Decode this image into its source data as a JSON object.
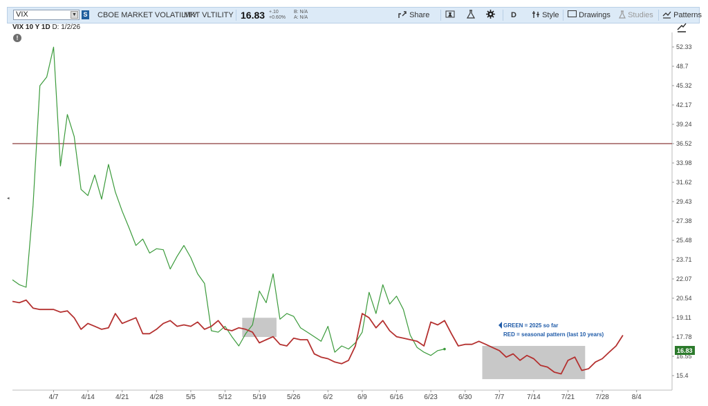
{
  "toolbar": {
    "symbol": "VIX",
    "symbol_dropdown": "▼",
    "symbol_badge": "S",
    "description": "CBOE MARKET VOLATILITY",
    "short_name": "MKT VLTILITY",
    "last_price": "16.83",
    "change": "+.10",
    "change_pct": "+0.60%",
    "bid": "B: N/A",
    "ask": "A: N/A",
    "share_label": "Share",
    "aggregation": "D",
    "style_label": "Style",
    "drawings_label": "Drawings",
    "studies_label": "Studies",
    "patterns_label": "Patterns",
    "icons": [
      "share-icon",
      "flask-icon",
      "beaker-icon",
      "gear-icon",
      "style-icon",
      "drawings-icon",
      "studies-icon",
      "patterns-icon"
    ]
  },
  "chart_header": {
    "symbol_period": "VIX 10 Y 1D",
    "date": "D: 1/2/26",
    "alert": "!"
  },
  "annotations": {
    "green": "GREEN = 2025 so far",
    "red": "RED = seasonal pattern (last 10 years)"
  },
  "last_label": "16.83",
  "colors": {
    "green": "#3a9a3a",
    "red": "#b4302f",
    "hline": "#8b3a3a",
    "accent": "#1f5ba8",
    "shade": "#c8c8c8"
  },
  "chart_data": {
    "type": "line",
    "y_ticks": [
      52.33,
      48.7,
      45.32,
      42.17,
      39.24,
      36.52,
      33.98,
      31.62,
      29.43,
      27.38,
      25.48,
      23.71,
      22.07,
      20.54,
      19.11,
      17.78,
      16.55,
      15.4
    ],
    "y_scale": "log",
    "x_ticks": [
      "4/7",
      "4/14",
      "4/21",
      "4/28",
      "5/5",
      "5/12",
      "5/19",
      "5/26",
      "6/2",
      "6/9",
      "6/16",
      "6/23",
      "6/30",
      "7/7",
      "7/14",
      "7/21",
      "7/28",
      "8/4"
    ],
    "x_tick_index": [
      6,
      11,
      16,
      21,
      26,
      31,
      36,
      41,
      46,
      51,
      56,
      61,
      66,
      71,
      76,
      81,
      86,
      91
    ],
    "horizontal_line": 36.52,
    "shaded_zones": [
      {
        "from": 33.5,
        "to": 38.5,
        "ymin": 17.78,
        "ymax": 19.1
      },
      {
        "from": 68.5,
        "to": 83.5,
        "ymin": 15.2,
        "ymax": 17.2
      }
    ],
    "series": [
      {
        "color": "#3a9a3a",
        "values": [
          22.0,
          21.6,
          21.4,
          29.0,
          45.3,
          46.8,
          52.3,
          33.6,
          40.7,
          37.5,
          30.8,
          30.1,
          32.5,
          29.7,
          33.8,
          30.5,
          28.4,
          26.7,
          25.0,
          25.6,
          24.3,
          24.7,
          24.6,
          22.9,
          24.0,
          25.0,
          23.9,
          22.5,
          21.7,
          18.2,
          18.1,
          18.5,
          17.8,
          17.2,
          18.0,
          18.6,
          21.1,
          20.2,
          22.5,
          19.0,
          19.4,
          19.2,
          18.4,
          18.1,
          17.8,
          17.5,
          18.5,
          16.8,
          17.2,
          17.0,
          17.4,
          18.1,
          21.0,
          19.4,
          21.6,
          20.1,
          20.7,
          19.7,
          17.9,
          17.1,
          16.8,
          16.6,
          16.9,
          17.0
        ]
      },
      {
        "color": "#b4302f",
        "values": [
          20.3,
          20.2,
          20.4,
          19.8,
          19.7,
          19.7,
          19.7,
          19.5,
          19.6,
          19.1,
          18.3,
          18.7,
          18.5,
          18.3,
          18.4,
          19.4,
          18.7,
          18.9,
          19.1,
          18.0,
          18.0,
          18.3,
          18.7,
          18.9,
          18.5,
          18.6,
          18.5,
          18.8,
          18.3,
          18.5,
          18.9,
          18.3,
          18.2,
          18.4,
          18.3,
          18.1,
          17.4,
          17.6,
          17.8,
          17.3,
          17.2,
          17.7,
          17.6,
          17.6,
          16.7,
          16.5,
          16.4,
          16.2,
          16.1,
          16.3,
          17.2,
          19.4,
          19.1,
          18.4,
          18.9,
          18.2,
          17.8,
          17.7,
          17.6,
          17.5,
          17.2,
          18.8,
          18.6,
          18.9,
          18.0,
          17.2,
          17.3,
          17.3,
          17.5,
          17.3,
          17.1,
          16.9,
          16.5,
          16.7,
          16.3,
          16.6,
          16.4,
          16.0,
          15.9,
          15.6,
          15.5,
          16.3,
          16.5,
          15.7,
          15.8,
          16.2,
          16.4,
          16.8,
          17.2,
          17.9
        ]
      }
    ]
  }
}
